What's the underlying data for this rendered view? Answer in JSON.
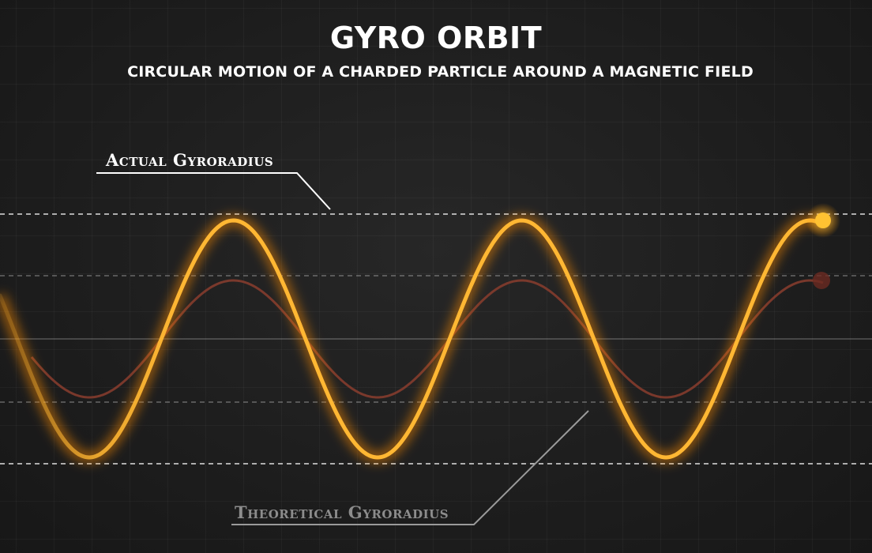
{
  "title": "GYRO ORBIT",
  "subtitle": "CIRCULAR MOTION OF A CHARDED PARTICLE AROUND A MAGNETIC FIELD",
  "labels": {
    "actual": "Actual Gyroradius",
    "theoretical": "Theoretical Gyroradius"
  },
  "colors": {
    "background": "#1d1d1d",
    "actual_curve": "#ffb733",
    "actual_glow": "#ff8c00",
    "theoretical_curve": "#8a3d2e",
    "guide_lines": "#ffffff",
    "theoretical_label": "#8c8c8c"
  }
}
